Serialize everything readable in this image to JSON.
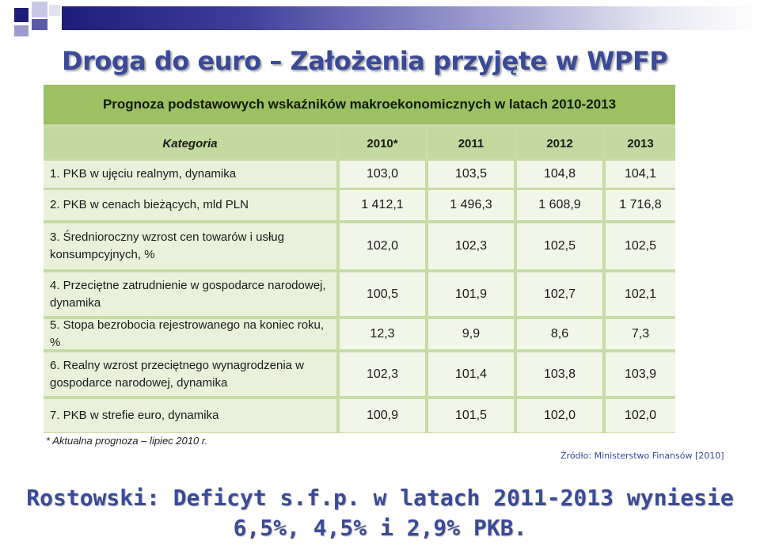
{
  "title": "Droga do euro – Założenia przyjęte w WPFP",
  "table": {
    "title": "Prognoza podstawowych wskaźników makroekonomicznych w latach 2010-2013",
    "category_header": "Kategoria",
    "years": [
      "2010*",
      "2011",
      "2012",
      "2013"
    ],
    "rows": [
      {
        "label": "1. PKB w ujęciu realnym, dynamika",
        "values": [
          "103,0",
          "103,5",
          "104,8",
          "104,1"
        ]
      },
      {
        "label": "2. PKB w cenach bieżących, mld PLN",
        "values": [
          "1 412,1",
          "1 496,3",
          "1 608,9",
          "1 716,8"
        ]
      },
      {
        "label": "3. Średnioroczny wzrost cen towarów i usług konsumpcyjnych, %",
        "values": [
          "102,0",
          "102,3",
          "102,5",
          "102,5"
        ]
      },
      {
        "label": "4. Przeciętne zatrudnienie w gospodarce narodowej, dynamika",
        "values": [
          "100,5",
          "101,9",
          "102,7",
          "102,1"
        ]
      },
      {
        "label": "5. Stopa bezrobocia rejestrowanego na koniec roku, %",
        "values": [
          "12,3",
          "9,9",
          "8,6",
          "7,3"
        ]
      },
      {
        "label": "6. Realny wzrost przeciętnego wynagrodzenia w gospodarce narodowej, dynamika",
        "values": [
          "102,3",
          "101,4",
          "103,8",
          "103,9"
        ]
      },
      {
        "label": "7. PKB w strefie euro, dynamika",
        "values": [
          "100,9",
          "101,5",
          "102,0",
          "102,0"
        ]
      }
    ],
    "footnote": "* Aktualna prognoza – lipiec 2010 r."
  },
  "source": "Źródło: Ministerstwo Finansów [2010]",
  "conclusion": {
    "line1": "Rostowski: Deficyt s.f.p. w latach 2011-2013 wyniesie",
    "line2": "6,5%, 4,5% i 2,9% PKB."
  },
  "colors": {
    "title": "#3a4a98",
    "table_title_bg": "#9cc062",
    "header_bg": "#c3d99f",
    "cell_bg": "#f1f6e8"
  }
}
